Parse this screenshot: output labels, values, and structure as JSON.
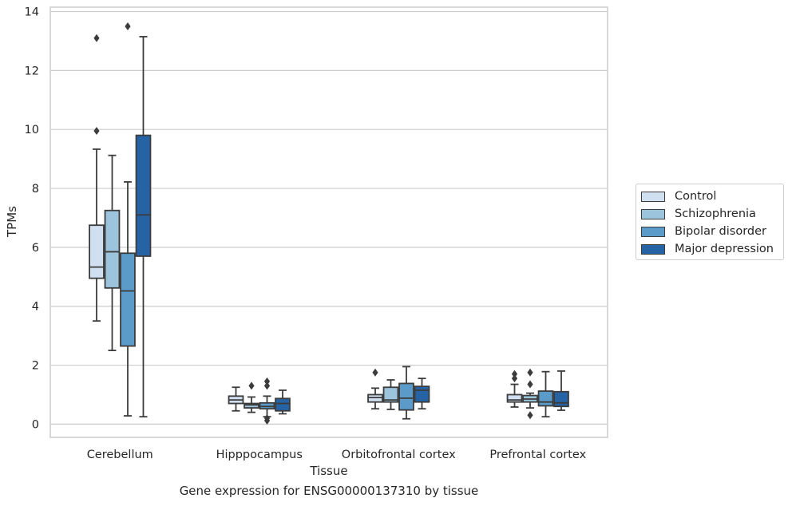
{
  "caption": "Gene expression for ENSG00000137310 by tissue",
  "chart_data": {
    "type": "box",
    "xlabel": "Tissue",
    "ylabel": "TPMs",
    "ylim": [
      -0.45,
      14.15
    ],
    "yticks": [
      0,
      2,
      4,
      6,
      8,
      10,
      12,
      14
    ],
    "grid": "horizontal",
    "legend_position": "right",
    "categories": [
      "Cerebellum",
      "Hipppocampus",
      "Orbitofrontal cortex",
      "Prefrontal cortex"
    ],
    "series": [
      {
        "name": "Control",
        "color": "#d0e0f0",
        "boxes": [
          {
            "whislo": 3.5,
            "q1": 4.95,
            "med": 5.33,
            "q3": 6.75,
            "whishi": 9.33,
            "fliers": [
              9.95,
              13.1
            ]
          },
          {
            "whislo": 0.45,
            "q1": 0.7,
            "med": 0.82,
            "q3": 0.95,
            "whishi": 1.25,
            "fliers": []
          },
          {
            "whislo": 0.52,
            "q1": 0.75,
            "med": 0.9,
            "q3": 1.0,
            "whishi": 1.22,
            "fliers": [
              1.75
            ]
          },
          {
            "whislo": 0.58,
            "q1": 0.75,
            "med": 0.82,
            "q3": 1.0,
            "whishi": 1.35,
            "fliers": [
              1.55,
              1.7
            ]
          }
        ]
      },
      {
        "name": "Schizophrenia",
        "color": "#9cc4dd",
        "boxes": [
          {
            "whislo": 2.5,
            "q1": 4.62,
            "med": 5.85,
            "q3": 7.25,
            "whishi": 9.12,
            "fliers": []
          },
          {
            "whislo": 0.4,
            "q1": 0.55,
            "med": 0.65,
            "q3": 0.7,
            "whishi": 0.92,
            "fliers": [
              1.3
            ]
          },
          {
            "whislo": 0.5,
            "q1": 0.75,
            "med": 0.82,
            "q3": 1.25,
            "whishi": 1.5,
            "fliers": []
          },
          {
            "whislo": 0.55,
            "q1": 0.75,
            "med": 0.85,
            "q3": 0.97,
            "whishi": 1.05,
            "fliers": [
              0.3,
              1.35,
              1.75
            ]
          }
        ]
      },
      {
        "name": "Bipolar disorder",
        "color": "#5a9bc9",
        "boxes": [
          {
            "whislo": 0.28,
            "q1": 2.65,
            "med": 4.52,
            "q3": 5.8,
            "whishi": 8.22,
            "fliers": [
              13.5
            ]
          },
          {
            "whislo": 0.25,
            "q1": 0.52,
            "med": 0.6,
            "q3": 0.72,
            "whishi": 0.95,
            "fliers": [
              0.12,
              0.2,
              1.3,
              1.45
            ]
          },
          {
            "whislo": 0.18,
            "q1": 0.48,
            "med": 0.88,
            "q3": 1.38,
            "whishi": 1.95,
            "fliers": []
          },
          {
            "whislo": 0.25,
            "q1": 0.62,
            "med": 0.75,
            "q3": 1.12,
            "whishi": 1.78,
            "fliers": []
          }
        ]
      },
      {
        "name": "Major depression",
        "color": "#2563a5",
        "boxes": [
          {
            "whislo": 0.25,
            "q1": 5.7,
            "med": 7.1,
            "q3": 9.8,
            "whishi": 13.15,
            "fliers": []
          },
          {
            "whislo": 0.35,
            "q1": 0.45,
            "med": 0.7,
            "q3": 0.87,
            "whishi": 1.15,
            "fliers": []
          },
          {
            "whislo": 0.52,
            "q1": 0.75,
            "med": 1.15,
            "q3": 1.28,
            "whishi": 1.55,
            "fliers": []
          },
          {
            "whislo": 0.47,
            "q1": 0.6,
            "med": 0.72,
            "q3": 1.1,
            "whishi": 1.8,
            "fliers": []
          }
        ]
      }
    ]
  }
}
